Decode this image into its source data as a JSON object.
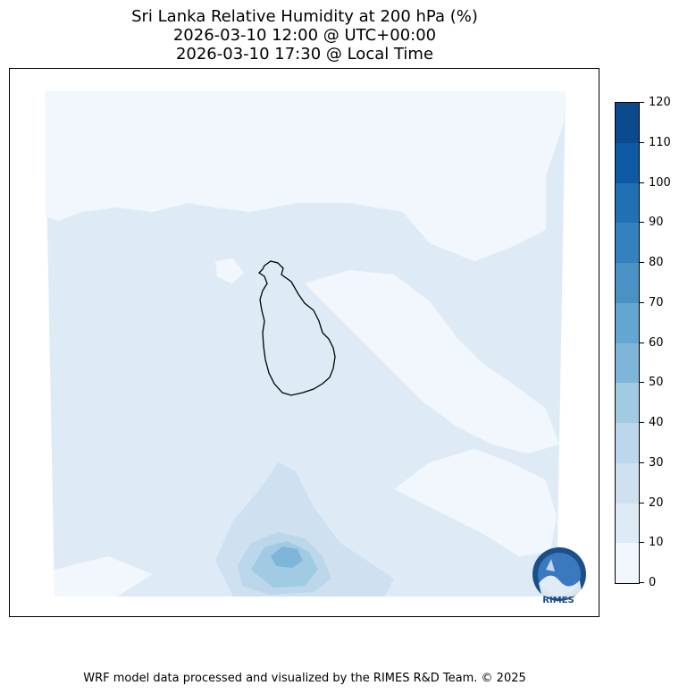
{
  "title": {
    "line1": "Sri Lanka Relative Humidity at 200 hPa (%)",
    "line2": "2026-03-10 12:00 @ UTC+00:00",
    "line3": "2026-03-10 17:30 @ Local Time"
  },
  "colorbar": {
    "ticks": [
      "0",
      "10",
      "20",
      "30",
      "40",
      "50",
      "60",
      "70",
      "80",
      "90",
      "100",
      "110",
      "120"
    ],
    "colors": [
      "#f2f7fd",
      "#deebf7",
      "#cfe0f1",
      "#bcd6eb",
      "#a1cbe2",
      "#7fb5d9",
      "#63a6d2",
      "#4a92c6",
      "#3481c0",
      "#2070b4",
      "#0e59a3",
      "#0b4a8f"
    ]
  },
  "logo": {
    "text": "RIMES"
  },
  "footer": "WRF model data processed and visualized by the RIMES R&D Team. © 2025"
}
